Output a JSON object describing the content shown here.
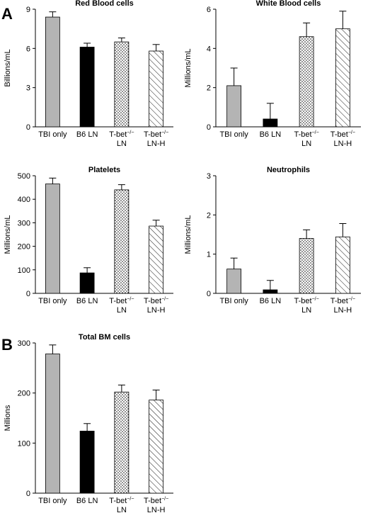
{
  "panels": [
    {
      "letter": "A"
    },
    {
      "letter": "B"
    }
  ],
  "chart_data": [
    {
      "type": "bar",
      "panel": "A",
      "title": "Red Blood cells",
      "ylabel": "Billions/mL",
      "categories": [
        "TBI only",
        "B6 LN",
        [
          "T-bet",
          "−/−",
          "LN"
        ],
        [
          "T-bet",
          "−/−",
          "LN-H"
        ]
      ],
      "values": [
        8.4,
        6.1,
        6.5,
        5.8
      ],
      "errors": [
        0.4,
        0.3,
        0.3,
        0.5
      ],
      "fills": [
        "gray",
        "black",
        "dots",
        "hatch"
      ],
      "ylim": [
        0,
        9
      ],
      "yticks": [
        0,
        3,
        6,
        9
      ]
    },
    {
      "type": "bar",
      "panel": "A",
      "title": "White Blood cells",
      "ylabel": "Millions/mL",
      "categories": [
        "TBI only",
        "B6 LN",
        [
          "T-bet",
          "−/−",
          "LN"
        ],
        [
          "T-bet",
          "−/−",
          "LN-H"
        ]
      ],
      "values": [
        2.1,
        0.4,
        4.6,
        5.0
      ],
      "errors": [
        0.9,
        0.8,
        0.7,
        0.9
      ],
      "fills": [
        "gray",
        "black",
        "dots",
        "hatch"
      ],
      "ylim": [
        0,
        6
      ],
      "yticks": [
        0,
        2,
        4,
        6
      ]
    },
    {
      "type": "bar",
      "panel": "A",
      "title": "Platelets",
      "ylabel": "Millions/mL",
      "categories": [
        "TBI only",
        "B6 LN",
        [
          "T-bet",
          "−/−",
          "LN"
        ],
        [
          "T-bet",
          "−/−",
          "LN-H"
        ]
      ],
      "values": [
        465,
        87,
        440,
        286
      ],
      "errors": [
        25,
        22,
        22,
        25
      ],
      "fills": [
        "gray",
        "black",
        "dots",
        "hatch"
      ],
      "ylim": [
        0,
        500
      ],
      "yticks": [
        0,
        100,
        200,
        300,
        400,
        500
      ]
    },
    {
      "type": "bar",
      "panel": "A",
      "title": "Neutrophils",
      "ylabel": "Millions/mL",
      "categories": [
        "TBI only",
        "B6 LN",
        [
          "T-bet",
          "−/−",
          "LN"
        ],
        [
          "T-bet",
          "−/−",
          "LN-H"
        ]
      ],
      "values": [
        0.62,
        0.09,
        1.4,
        1.44
      ],
      "errors": [
        0.28,
        0.24,
        0.22,
        0.34
      ],
      "fills": [
        "gray",
        "black",
        "dots",
        "hatch"
      ],
      "ylim": [
        0,
        3
      ],
      "yticks": [
        0,
        1,
        2,
        3
      ]
    },
    {
      "type": "bar",
      "panel": "B",
      "title": "Total BM cells",
      "ylabel": "Millions",
      "categories": [
        "TBI only",
        "B6 LN",
        [
          "T-bet",
          "−/−",
          "LN"
        ],
        [
          "T-bet",
          "−/−",
          "LN-H"
        ]
      ],
      "values": [
        278,
        124,
        202,
        186
      ],
      "errors": [
        18,
        15,
        14,
        20
      ],
      "fills": [
        "gray",
        "black",
        "dots",
        "hatch"
      ],
      "ylim": [
        0,
        300
      ],
      "yticks": [
        0,
        100,
        200,
        300
      ]
    }
  ]
}
